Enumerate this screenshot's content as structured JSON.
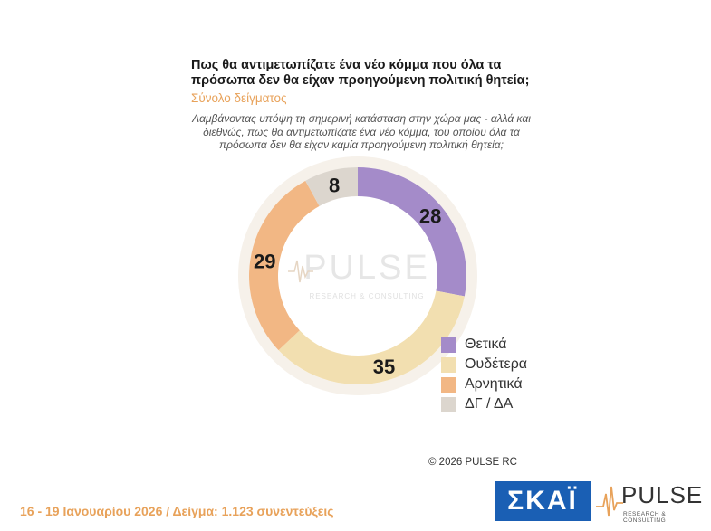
{
  "header": {
    "title": "Πως θα αντιμετωπίζατε ένα νέο κόμμα που όλα τα πρόσωπα δεν θα είχαν προηγούμενη πολιτική θητεία;",
    "subtitle": "Σύνολο δείγματος",
    "question": "Λαμβάνοντας υπόψη τη σημερινή κατάσταση στην χώρα μας - αλλά και διεθνώς, πως θα αντιμετωπίζατε ένα νέο κόμμα, του οποίου όλα τα πρόσωπα δεν θα είχαν καμία προηγούμενη πολιτική θητεία;"
  },
  "chart_data": {
    "type": "pie",
    "categories": [
      "Θετικά",
      "Ουδέτερα",
      "Αρνητικά",
      "ΔΓ / ΔΑ"
    ],
    "values": [
      28,
      35,
      29,
      8
    ],
    "colors": [
      "#a48bc9",
      "#f2dfb0",
      "#f2b784",
      "#dcd6ce"
    ],
    "legend_position": "right"
  },
  "watermark": {
    "brand": "PULSE",
    "tagline": "RESEARCH & CONSULTING"
  },
  "footer": {
    "copyright": "© 2026 PULSE RC",
    "dates_sample": "16 - 19 Ιανουαρίου 2026  /  Δείγμα:  1.123 συνεντεύξεις",
    "skai_logo": "ΣΚΑΪ",
    "pulse_logo": "PULSE",
    "pulse_tagline": "RESEARCH & CONSULTING"
  }
}
